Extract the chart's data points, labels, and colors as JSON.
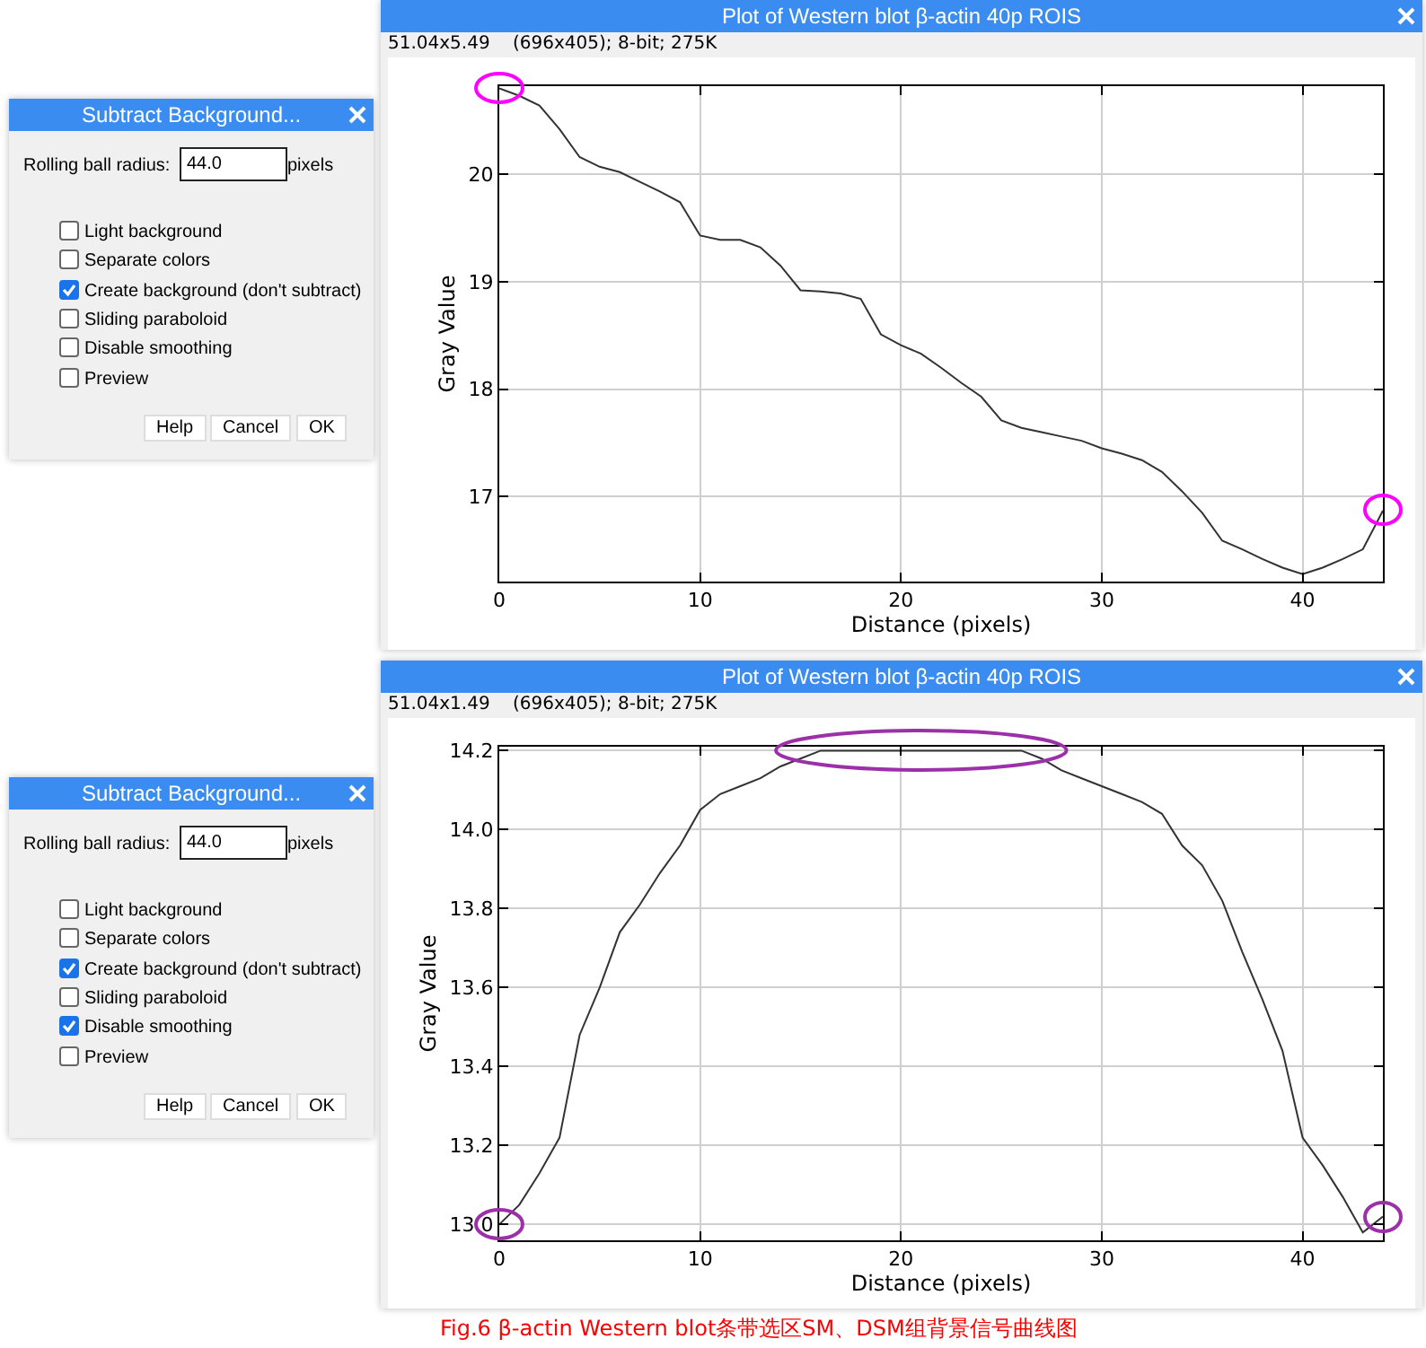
{
  "chart_data": [
    {
      "type": "other",
      "title": "Subtract Background...",
      "annotations": [
        "Rolling ball radius:",
        "44.0",
        "pixels",
        "Light background",
        "Separate colors",
        "Create background (don't subtract)",
        "Sliding paraboloid",
        "Disable smoothing",
        "Preview",
        "Help",
        "Cancel",
        "OK"
      ]
    },
    {
      "type": "line",
      "title": "Plot of Western blot β-actin 40p ROIS",
      "subtitle": "51.04x5.49    (696x405); 8-bit; 275K",
      "xlabel": "Distance (pixels)",
      "ylabel": "Gray Value",
      "grid": true,
      "marker": "none",
      "line_style": "solid",
      "x": [
        0,
        1,
        2,
        3,
        4,
        5,
        6,
        7,
        8,
        9,
        10,
        11,
        12,
        13,
        14,
        15,
        16,
        17,
        18,
        19,
        20,
        21,
        22,
        23,
        24,
        25,
        26,
        27,
        28,
        29,
        30,
        31,
        32,
        33,
        34,
        35,
        36,
        37,
        38,
        39,
        40,
        41,
        42,
        43,
        44
      ],
      "series": [
        {
          "color": "#333333",
          "values": [
            20.8,
            20.73,
            20.64,
            20.42,
            20.16,
            20.07,
            20.02,
            19.93,
            19.84,
            19.74,
            19.43,
            19.39,
            19.39,
            19.32,
            19.15,
            18.92,
            18.91,
            18.89,
            18.84,
            18.51,
            18.41,
            18.33,
            18.2,
            18.06,
            17.93,
            17.71,
            17.64,
            17.6,
            17.56,
            17.52,
            17.45,
            17.4,
            17.34,
            17.23,
            17.05,
            16.85,
            16.59,
            16.51,
            16.42,
            16.34,
            16.28,
            16.34,
            16.42,
            16.51,
            16.87
          ]
        }
      ],
      "xlim": [
        0,
        44
      ],
      "ylim": [
        16.21,
        20.82
      ],
      "xticks": [
        0,
        10,
        20,
        30,
        40
      ],
      "yticks": [
        17,
        18,
        19,
        20
      ]
    },
    {
      "type": "other",
      "title": "Subtract Background...",
      "annotations": [
        "Rolling ball radius:",
        "44.0",
        "pixels",
        "Light background",
        "Separate colors",
        "Create background (don't subtract)",
        "Sliding paraboloid",
        "Disable smoothing",
        "Preview",
        "Help",
        "Cancel",
        "OK"
      ]
    },
    {
      "type": "line",
      "title": "Plot of Western blot β-actin 40p ROIS",
      "subtitle": "51.04x1.49    (696x405); 8-bit; 275K",
      "xlabel": "Distance (pixels)",
      "ylabel": "Gray Value",
      "grid": true,
      "marker": "none",
      "line_style": "solid",
      "x": [
        0,
        1,
        2,
        3,
        4,
        5,
        6,
        7,
        8,
        9,
        10,
        11,
        12,
        13,
        14,
        15,
        16,
        17,
        18,
        19,
        20,
        21,
        22,
        23,
        24,
        25,
        26,
        27,
        28,
        29,
        30,
        31,
        32,
        33,
        34,
        35,
        36,
        37,
        38,
        39,
        40,
        41,
        42,
        43,
        44
      ],
      "series": [
        {
          "color": "#333333",
          "values": [
            13.0,
            13.05,
            13.13,
            13.22,
            13.48,
            13.6,
            13.74,
            13.81,
            13.89,
            13.96,
            14.05,
            14.09,
            14.11,
            14.13,
            14.16,
            14.18,
            14.2,
            14.2,
            14.2,
            14.2,
            14.2,
            14.2,
            14.2,
            14.2,
            14.2,
            14.2,
            14.2,
            14.18,
            14.15,
            14.13,
            14.11,
            14.09,
            14.07,
            14.04,
            13.96,
            13.91,
            13.82,
            13.69,
            13.57,
            13.44,
            13.22,
            13.15,
            13.07,
            12.98,
            13.02
          ]
        }
      ],
      "xlim": [
        0,
        44
      ],
      "ylim": [
        12.96,
        14.21
      ],
      "xticks": [
        0,
        10,
        20,
        30,
        40
      ],
      "yticks": [
        {
          "value": 13,
          "label": "13.0"
        },
        {
          "value": 13.2,
          "label": "13.2"
        },
        {
          "value": 13.4,
          "label": "13.4"
        },
        {
          "value": 13.6,
          "label": "13.6"
        },
        {
          "value": 13.8,
          "label": "13.8"
        },
        {
          "value": 14,
          "label": "14.0"
        },
        {
          "value": 14.2,
          "label": "14.2"
        }
      ],
      "annotations": [
        "Fig.6 β-actin Western blot条带选区SM、DSM组背景信号曲线图"
      ]
    }
  ]
}
